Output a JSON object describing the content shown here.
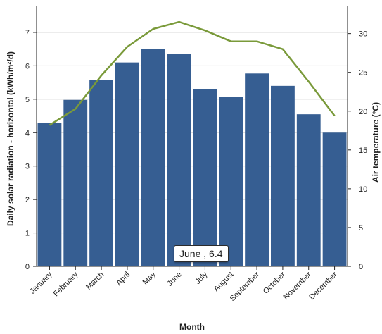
{
  "chart_data": {
    "type": "bar",
    "categories": [
      "January",
      "February",
      "March",
      "April",
      "May",
      "June",
      "July",
      "August",
      "September",
      "October",
      "November",
      "December"
    ],
    "series": [
      {
        "values": [
          4.3,
          4.98,
          5.58,
          6.1,
          6.5,
          6.35,
          5.3,
          5.08,
          5.77,
          5.4,
          4.55,
          4.0
        ],
        "type": "bar",
        "axis": "left",
        "color": "#365e92"
      },
      {
        "values": [
          18.2,
          20.3,
          24.6,
          28.3,
          30.6,
          31.5,
          30.4,
          29.0,
          29.0,
          28.0,
          23.8,
          19.4
        ],
        "type": "line",
        "axis": "right",
        "color": "#7a9a3a"
      }
    ],
    "xlabel": "Month",
    "ylabel": "Daily solar radiation - horizontal (kWh/m²/d)",
    "y2label": "Air temperature (°C)",
    "ylim": [
      0,
      7.8
    ],
    "y2lim": [
      0,
      33.6
    ],
    "yticks": [
      "0",
      "1",
      "2",
      "3",
      "4",
      "5",
      "6",
      "7"
    ],
    "y2ticks": [
      "0",
      "5",
      "10",
      "15",
      "20",
      "25",
      "30"
    ],
    "grid": "horizontal",
    "tooltip": {
      "text": "June , 6.4",
      "category": "June"
    }
  }
}
